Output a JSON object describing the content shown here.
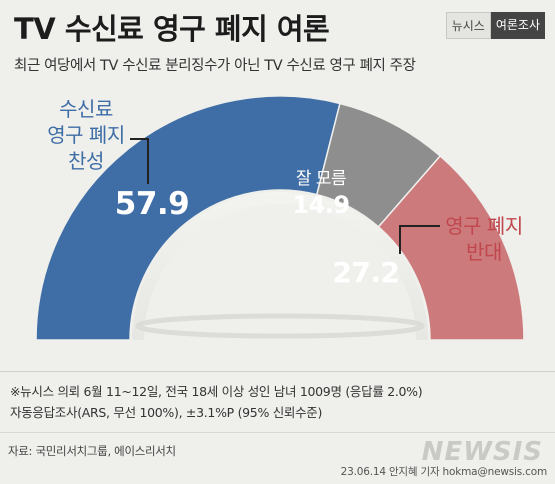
{
  "header": {
    "title": "TV 수신료 영구 폐지 여론",
    "badge_left": "뉴시스",
    "badge_right": "여론조사",
    "subtitle": "최근 여당에서 TV 수신료 분리징수가 아닌 TV 수신료 영구 폐지 주장"
  },
  "chart_data": {
    "type": "pie",
    "style": "semicircle-donut",
    "slices": [
      {
        "label_lines": [
          "수신료",
          "영구 폐지",
          "찬성"
        ],
        "value": 57.9,
        "value_label": "57.9",
        "color": "#3f6ea6",
        "label_color": "#3f6ea6"
      },
      {
        "label_lines": [
          "잘 모름"
        ],
        "value": 14.9,
        "value_label": "14.9",
        "color": "#8e8e8e",
        "label_color": "#ffffff"
      },
      {
        "label_lines": [
          "영구 폐지",
          "반대"
        ],
        "value": 27.2,
        "value_label": "27.2",
        "color": "#cd7a7c",
        "label_color": "#c0474d"
      }
    ]
  },
  "notes": {
    "line1": "※뉴시스 의뢰 6월 11~12일, 전국 18세 이상 성인 남녀 1009명 (응답률 2.0%)",
    "line2": "자동응답조사(ARS, 무선 100%), ±3.1%P (95% 신뢰수준)",
    "source": "자료: 국민리서치그룹, 에이스리서치"
  },
  "footer": {
    "logo": "NEWSIS",
    "credit": "23.06.14 안지혜 기자 hokma@newsis.com"
  }
}
